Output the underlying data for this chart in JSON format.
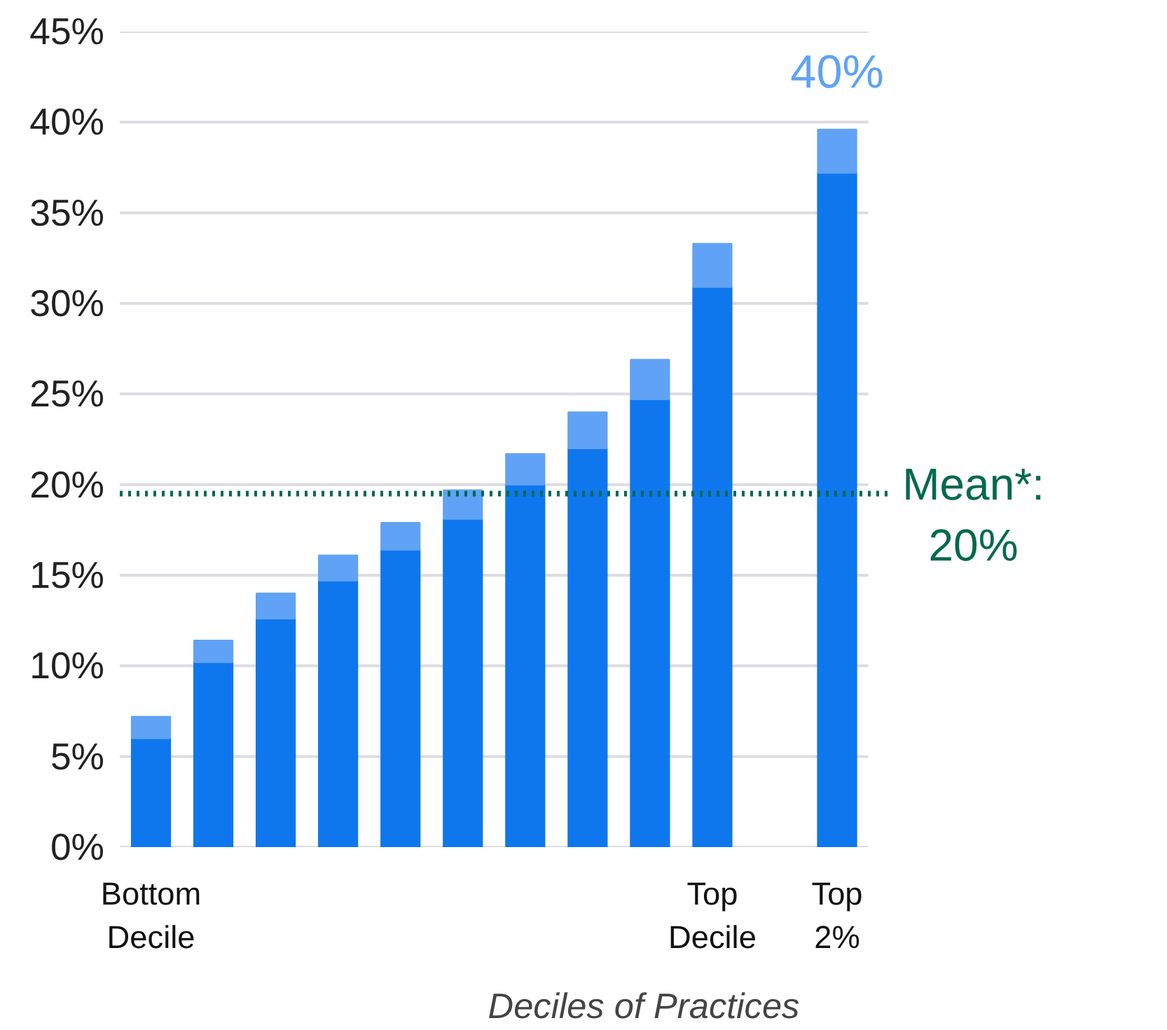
{
  "chart_data": {
    "type": "bar",
    "stacked": true,
    "xlabel": "Deciles of Practices",
    "categories": [
      "Bottom\nDecile",
      null,
      null,
      null,
      null,
      null,
      null,
      null,
      null,
      "Top\nDecile",
      null,
      "Top\n2%"
    ],
    "series": [
      {
        "color": "#0f77ee",
        "values": [
          6.0,
          10.2,
          12.6,
          14.7,
          16.4,
          18.1,
          20.0,
          22.0,
          24.7,
          30.9,
          null,
          37.2
        ]
      },
      {
        "color": "#60a2f5",
        "values": [
          1.2,
          1.2,
          1.4,
          1.4,
          1.5,
          1.6,
          1.7,
          2.0,
          2.2,
          2.4,
          null,
          2.4
        ]
      }
    ],
    "annotations": [
      {
        "text": "40%",
        "x": "Top\n2%",
        "y": 39.6
      }
    ],
    "ylim": [
      0,
      45
    ],
    "yticks": [
      {
        "value": 0,
        "label": "0%"
      },
      {
        "value": 5,
        "label": "5%"
      },
      {
        "value": 10,
        "label": "10%"
      },
      {
        "value": 15,
        "label": "15%"
      },
      {
        "value": 20,
        "label": "20%"
      },
      {
        "value": 25,
        "label": "25%"
      },
      {
        "value": 30,
        "label": "30%"
      },
      {
        "value": 35,
        "label": "35%"
      },
      {
        "value": 40,
        "label": "40%"
      },
      {
        "value": 45,
        "label": "45%"
      }
    ],
    "grid": "y",
    "ref_lines": [
      {
        "axis": "y",
        "value": 19.5,
        "label": "Mean*:\n20%",
        "color": "#006a4e",
        "line_style": "dotted"
      }
    ]
  }
}
